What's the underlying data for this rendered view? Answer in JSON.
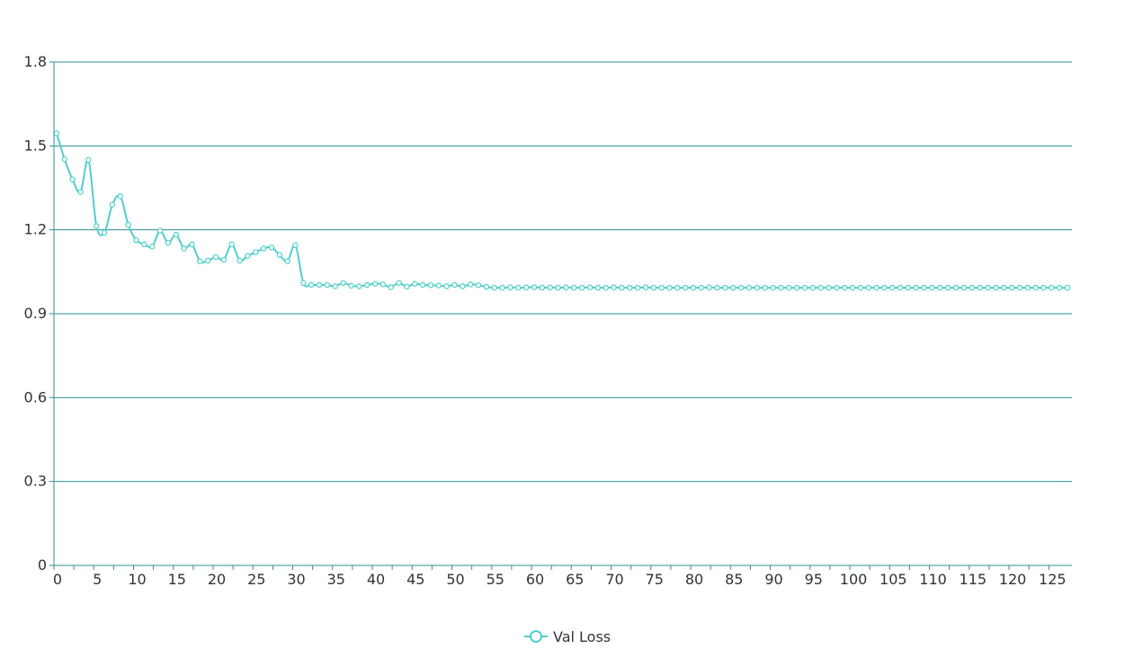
{
  "chart_data": {
    "type": "line",
    "title": "",
    "xlabel": "",
    "ylabel": "",
    "x": [
      0,
      1,
      2,
      3,
      4,
      5,
      6,
      7,
      8,
      9,
      10,
      11,
      12,
      13,
      14,
      15,
      16,
      17,
      18,
      19,
      20,
      21,
      22,
      23,
      24,
      25,
      26,
      27,
      28,
      29,
      30,
      31,
      32,
      33,
      34,
      35,
      36,
      37,
      38,
      39,
      40,
      41,
      42,
      43,
      44,
      45,
      46,
      47,
      48,
      49,
      50,
      51,
      52,
      53,
      54,
      55,
      56,
      57,
      58,
      59,
      60,
      61,
      62,
      63,
      64,
      65,
      66,
      67,
      68,
      69,
      70,
      71,
      72,
      73,
      74,
      75,
      76,
      77,
      78,
      79,
      80,
      81,
      82,
      83,
      84,
      85,
      86,
      87,
      88,
      89,
      90,
      91,
      92,
      93,
      94,
      95,
      96,
      97,
      98,
      99,
      100,
      101,
      102,
      103,
      104,
      105,
      106,
      107,
      108,
      109,
      110,
      111,
      112,
      113,
      114,
      115,
      116,
      117,
      118,
      119,
      120,
      121,
      122,
      123,
      124,
      125,
      126,
      127
    ],
    "series": [
      {
        "name": "Val Loss",
        "color": "#4fcfcc",
        "values": [
          1.545,
          1.452,
          1.38,
          1.335,
          1.45,
          1.213,
          1.19,
          1.29,
          1.32,
          1.218,
          1.163,
          1.148,
          1.14,
          1.197,
          1.153,
          1.183,
          1.133,
          1.148,
          1.087,
          1.09,
          1.103,
          1.093,
          1.148,
          1.09,
          1.107,
          1.12,
          1.133,
          1.137,
          1.11,
          1.088,
          1.145,
          1.01,
          1.003,
          1.003,
          1.003,
          0.998,
          1.01,
          1.0,
          0.998,
          1.003,
          1.007,
          1.005,
          0.995,
          1.01,
          0.997,
          1.007,
          1.003,
          1.002,
          1.001,
          0.998,
          1.003,
          0.998,
          1.005,
          1.002,
          0.996,
          0.993,
          0.993,
          0.994,
          0.993,
          0.994,
          0.995,
          0.993,
          0.994,
          0.993,
          0.994,
          0.993,
          0.993,
          0.994,
          0.993,
          0.993,
          0.994,
          0.993,
          0.993,
          0.993,
          0.994,
          0.993,
          0.993,
          0.993,
          0.993,
          0.993,
          0.993,
          0.993,
          0.994,
          0.993,
          0.993,
          0.993,
          0.993,
          0.993,
          0.993,
          0.993,
          0.993,
          0.993,
          0.993,
          0.993,
          0.993,
          0.993,
          0.993,
          0.993,
          0.993,
          0.993,
          0.993,
          0.993,
          0.993,
          0.993,
          0.993,
          0.993,
          0.993,
          0.993,
          0.993,
          0.993,
          0.993,
          0.993,
          0.993,
          0.993,
          0.993,
          0.993,
          0.993,
          0.993,
          0.993,
          0.993,
          0.993,
          0.993,
          0.993,
          0.993,
          0.993,
          0.993,
          0.993,
          0.993
        ]
      }
    ],
    "xlim": [
      0,
      127
    ],
    "ylim": [
      0,
      1.8
    ],
    "xticks": [
      0,
      5,
      10,
      15,
      20,
      25,
      30,
      35,
      40,
      45,
      50,
      55,
      60,
      65,
      70,
      75,
      80,
      85,
      90,
      95,
      100,
      105,
      110,
      115,
      120,
      125
    ],
    "yticks": [
      0,
      0.3,
      0.6,
      0.9,
      1.2,
      1.5,
      1.8
    ],
    "ytick_labels": [
      "0",
      "0.3",
      "0.6",
      "0.9",
      "1.2",
      "1.5",
      "1.8"
    ],
    "grid": true,
    "legend": "bottom-center",
    "axis_color": "#2f8f8f"
  }
}
